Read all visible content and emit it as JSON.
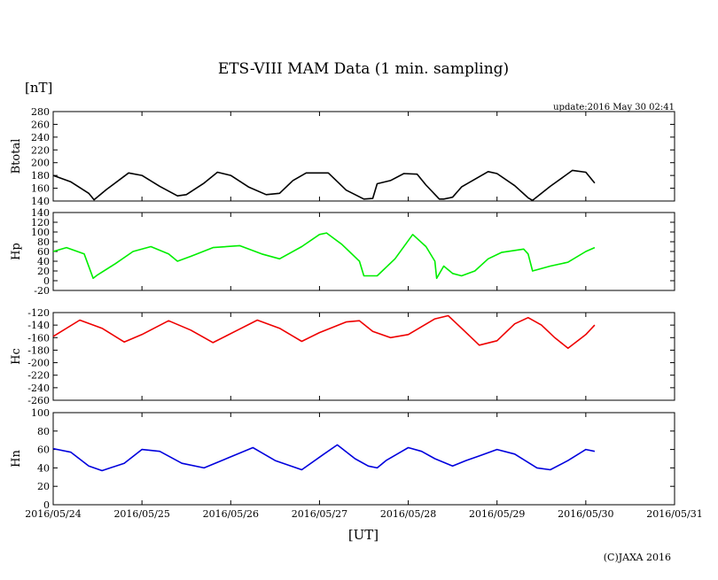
{
  "chart_data": {
    "type": "line",
    "title": "ETS-VIII MAM Data (1 min. sampling)",
    "y_unit": "[nT]",
    "x_label": "[UT]",
    "update": "update:2016 May 30 02:41",
    "copyright": "(C)JAXA 2016",
    "x_ticks": [
      "2016/05/24",
      "2016/05/25",
      "2016/05/26",
      "2016/05/27",
      "2016/05/28",
      "2016/05/29",
      "2016/05/30",
      "2016/05/31"
    ],
    "x_range_days": [
      0,
      7
    ],
    "panels": [
      {
        "name": "Btotal",
        "color": "#000000",
        "ylim": [
          140,
          280
        ],
        "ticks": [
          280,
          260,
          240,
          220,
          200,
          180,
          160,
          140
        ],
        "x": [
          0,
          0.2,
          0.4,
          0.46,
          0.6,
          0.85,
          1.0,
          1.2,
          1.4,
          1.5,
          1.7,
          1.85,
          2.0,
          2.2,
          2.4,
          2.55,
          2.7,
          2.85,
          3.1,
          3.3,
          3.5,
          3.6,
          3.65,
          3.8,
          3.95,
          4.1,
          4.2,
          4.35,
          4.4,
          4.5,
          4.6,
          4.9,
          5.0,
          5.2,
          5.35,
          5.4,
          5.6,
          5.85,
          6.0,
          6.1
        ],
        "values": [
          180,
          170,
          152,
          142,
          158,
          184,
          180,
          163,
          148,
          150,
          168,
          185,
          180,
          162,
          150,
          152,
          172,
          184,
          184,
          157,
          143,
          144,
          167,
          172,
          183,
          182,
          165,
          143,
          143,
          146,
          162,
          186,
          183,
          164,
          145,
          141,
          163,
          188,
          185,
          168
        ]
      },
      {
        "name": "Hp",
        "color": "#00ee00",
        "ylim": [
          -20,
          140
        ],
        "ticks": [
          140,
          120,
          100,
          80,
          60,
          40,
          20,
          0,
          -20
        ],
        "x": [
          0,
          0.15,
          0.35,
          0.45,
          0.5,
          0.7,
          0.9,
          1.1,
          1.3,
          1.4,
          1.55,
          1.8,
          2.1,
          2.35,
          2.55,
          2.8,
          3.0,
          3.08,
          3.25,
          3.45,
          3.5,
          3.65,
          3.85,
          4.05,
          4.2,
          4.3,
          4.32,
          4.4,
          4.5,
          4.6,
          4.75,
          4.9,
          5.05,
          5.3,
          5.35,
          5.4,
          5.6,
          5.8,
          6.0,
          6.1
        ],
        "values": [
          60,
          68,
          55,
          5,
          12,
          35,
          60,
          70,
          55,
          40,
          50,
          68,
          72,
          55,
          45,
          70,
          95,
          98,
          75,
          40,
          10,
          10,
          45,
          95,
          70,
          40,
          5,
          30,
          15,
          10,
          20,
          45,
          58,
          65,
          55,
          20,
          30,
          38,
          60,
          68
        ]
      },
      {
        "name": "Hc",
        "color": "#ee0000",
        "ylim": [
          -260,
          -120
        ],
        "ticks": [
          -120,
          -140,
          -160,
          -180,
          -200,
          -220,
          -240,
          -260
        ],
        "x": [
          0,
          0.3,
          0.55,
          0.8,
          1.0,
          1.3,
          1.55,
          1.8,
          2.05,
          2.3,
          2.55,
          2.8,
          3.0,
          3.3,
          3.45,
          3.6,
          3.8,
          4.0,
          4.3,
          4.45,
          4.6,
          4.8,
          5.0,
          5.2,
          5.35,
          5.5,
          5.65,
          5.8,
          6.0,
          6.1
        ],
        "values": [
          -158,
          -132,
          -145,
          -167,
          -155,
          -133,
          -148,
          -168,
          -150,
          -132,
          -145,
          -166,
          -152,
          -135,
          -133,
          -150,
          -160,
          -155,
          -130,
          -125,
          -145,
          -172,
          -165,
          -138,
          -128,
          -140,
          -160,
          -177,
          -155,
          -140
        ]
      },
      {
        "name": "Hn",
        "color": "#0000dd",
        "ylim": [
          0,
          100
        ],
        "ticks": [
          100,
          80,
          60,
          40,
          20,
          0
        ],
        "x": [
          0,
          0.2,
          0.4,
          0.55,
          0.8,
          1.0,
          1.2,
          1.45,
          1.7,
          2.0,
          2.25,
          2.5,
          2.8,
          3.05,
          3.2,
          3.4,
          3.55,
          3.65,
          3.75,
          4.0,
          4.15,
          4.3,
          4.5,
          4.65,
          4.8,
          5.0,
          5.2,
          5.45,
          5.6,
          5.8,
          6.0,
          6.1
        ],
        "values": [
          61,
          57,
          42,
          37,
          45,
          60,
          58,
          45,
          40,
          52,
          62,
          48,
          38,
          55,
          65,
          50,
          42,
          40,
          48,
          62,
          58,
          50,
          42,
          48,
          53,
          60,
          55,
          40,
          38,
          48,
          60,
          58
        ]
      }
    ]
  }
}
